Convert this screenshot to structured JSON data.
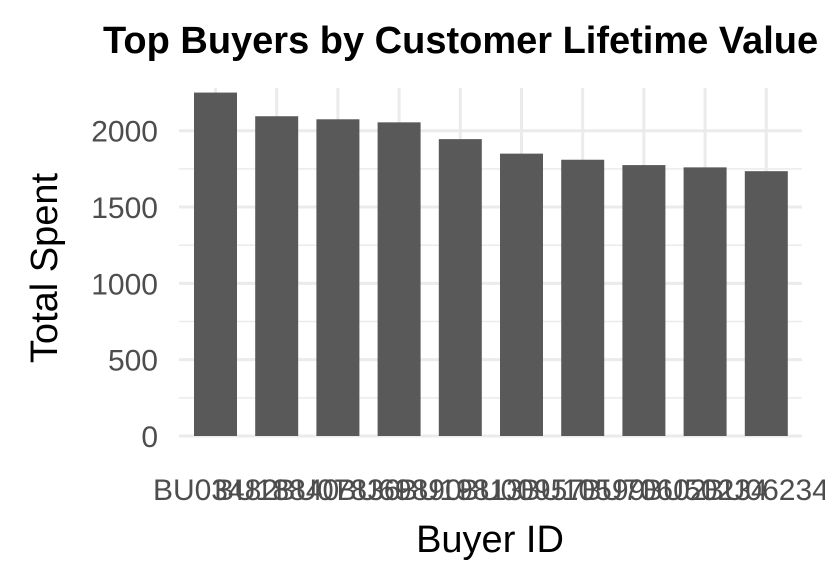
{
  "chart_data": {
    "type": "bar",
    "title": "Top Buyers by Customer Lifetime Value",
    "xlabel": "Buyer ID",
    "ylabel": "Total Spent",
    "categories": [
      "BU03482",
      "BU18840",
      "BU07836",
      "BU69890",
      "BU19813",
      "BU00957",
      "BU10599",
      "BU70602",
      "BU50234",
      "BU06234"
    ],
    "values": [
      2250,
      2095,
      2075,
      2055,
      1945,
      1850,
      1810,
      1775,
      1760,
      1735
    ],
    "ylim": [
      0,
      2280
    ],
    "yticks": [
      0,
      500,
      1000,
      1500,
      2000
    ],
    "grid": true,
    "legend": "none",
    "colors": {
      "bar": "#595959",
      "grid": "#ebebeb",
      "tick_text": "#4d4d4d",
      "background": "#ffffff"
    }
  }
}
